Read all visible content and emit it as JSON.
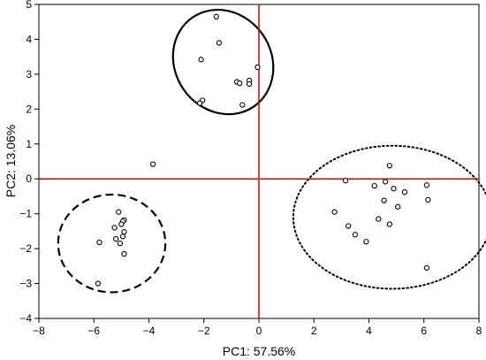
{
  "chart_data": {
    "type": "scatter",
    "title": "",
    "xlabel": "PC1: 57.56%",
    "ylabel": "PC2: 13.06%",
    "xlim": [
      -8,
      8
    ],
    "ylim": [
      -4,
      5
    ],
    "xticks": [
      -8,
      -6,
      -4,
      -2,
      0,
      2,
      4,
      6,
      8
    ],
    "yticks": [
      -4,
      -3,
      -2,
      -1,
      0,
      1,
      2,
      3,
      4,
      5
    ],
    "grid": false,
    "reference_lines": {
      "x": 0,
      "y": 0,
      "color": "#d40000"
    },
    "marker_style": "hollow circle",
    "points": [
      {
        "x": -1.55,
        "y": 4.65
      },
      {
        "x": -1.45,
        "y": 3.9
      },
      {
        "x": -2.1,
        "y": 3.42
      },
      {
        "x": -0.05,
        "y": 3.2
      },
      {
        "x": -0.8,
        "y": 2.78
      },
      {
        "x": -0.7,
        "y": 2.74
      },
      {
        "x": -0.35,
        "y": 2.82
      },
      {
        "x": -0.35,
        "y": 2.72
      },
      {
        "x": -2.05,
        "y": 2.25
      },
      {
        "x": -2.15,
        "y": 2.17
      },
      {
        "x": -0.6,
        "y": 2.12
      },
      {
        "x": -3.85,
        "y": 0.42
      },
      {
        "x": -5.1,
        "y": -0.95
      },
      {
        "x": -4.9,
        "y": -1.18
      },
      {
        "x": -4.95,
        "y": -1.22
      },
      {
        "x": -5.0,
        "y": -1.3
      },
      {
        "x": -5.25,
        "y": -1.4
      },
      {
        "x": -4.9,
        "y": -1.52
      },
      {
        "x": -5.2,
        "y": -1.72
      },
      {
        "x": -4.95,
        "y": -1.65
      },
      {
        "x": -5.8,
        "y": -1.82
      },
      {
        "x": -5.05,
        "y": -1.85
      },
      {
        "x": -4.9,
        "y": -2.15
      },
      {
        "x": -5.85,
        "y": -3.0
      },
      {
        "x": 4.75,
        "y": 0.38
      },
      {
        "x": 3.15,
        "y": -0.05
      },
      {
        "x": 4.6,
        "y": -0.08
      },
      {
        "x": 4.2,
        "y": -0.2
      },
      {
        "x": 6.1,
        "y": -0.18
      },
      {
        "x": 4.9,
        "y": -0.28
      },
      {
        "x": 5.3,
        "y": -0.38
      },
      {
        "x": 4.55,
        "y": -0.62
      },
      {
        "x": 6.15,
        "y": -0.6
      },
      {
        "x": 5.05,
        "y": -0.8
      },
      {
        "x": 2.75,
        "y": -0.95
      },
      {
        "x": 4.35,
        "y": -1.15
      },
      {
        "x": 4.75,
        "y": -1.3
      },
      {
        "x": 3.25,
        "y": -1.35
      },
      {
        "x": 3.5,
        "y": -1.6
      },
      {
        "x": 3.9,
        "y": -1.8
      },
      {
        "x": 6.1,
        "y": -2.55
      }
    ],
    "ellipses": [
      {
        "cx": -1.3,
        "cy": 3.35,
        "rx": 1.75,
        "ry": 1.55,
        "rotation_deg": -35,
        "style": "solid"
      },
      {
        "cx": -5.35,
        "cy": -1.85,
        "rx": 1.95,
        "ry": 1.4,
        "rotation_deg": 0,
        "style": "dashed"
      },
      {
        "cx": 4.85,
        "cy": -1.1,
        "rx": 3.6,
        "ry": 2.05,
        "rotation_deg": 0,
        "style": "dotted"
      }
    ]
  }
}
